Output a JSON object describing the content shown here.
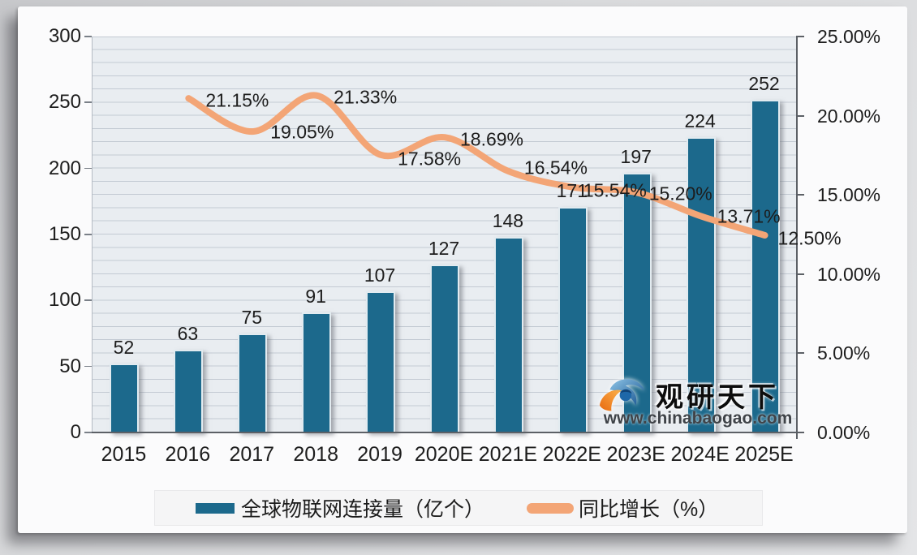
{
  "watermark": {
    "brand": "观研天下",
    "url": "www.chinabaogao.com"
  },
  "legend": {
    "items": [
      {
        "label": "全球物联网连接量（亿个）",
        "type": "bar"
      },
      {
        "label": "同比增长（%）",
        "type": "line"
      }
    ]
  },
  "colors": {
    "bar": "#1c698c",
    "line": "#f3a576",
    "plot_background": "#e9edf1",
    "gridline": "#c3cad3",
    "text": "#1d1d1d"
  },
  "chart_data": {
    "type": "bar+line",
    "title": "",
    "categories": [
      "2015",
      "2016",
      "2017",
      "2018",
      "2019",
      "2020E",
      "2021E",
      "2022E",
      "2023E",
      "2024E",
      "2025E"
    ],
    "series": [
      {
        "name": "全球物联网连接量（亿个）",
        "chart": "bar",
        "axis": "left",
        "values": [
          52,
          63,
          75,
          91,
          107,
          127,
          148,
          171,
          197,
          224,
          252
        ]
      },
      {
        "name": "同比增长（%）",
        "chart": "line",
        "axis": "right",
        "values": [
          null,
          21.15,
          19.05,
          21.33,
          17.58,
          18.69,
          16.54,
          15.54,
          15.2,
          13.71,
          12.5
        ],
        "labels": [
          "",
          "21.15%",
          "19.05%",
          "21.33%",
          "17.58%",
          "18.69%",
          "16.54%",
          "15.54%",
          "15.20%",
          "13.71%",
          "12.50%"
        ]
      }
    ],
    "left_axis": {
      "min": 0,
      "max": 300,
      "tick_labels": [
        "300",
        "250",
        "200",
        "150",
        "100",
        "50",
        "0"
      ]
    },
    "right_axis": {
      "min": 0,
      "max": 25,
      "tick_labels": [
        "25.00%",
        "20.00%",
        "15.00%",
        "10.00%",
        "5.00%",
        "0.00%"
      ]
    },
    "grid": "horizontal minor gridlines every 10 units",
    "legend_position": "bottom"
  }
}
